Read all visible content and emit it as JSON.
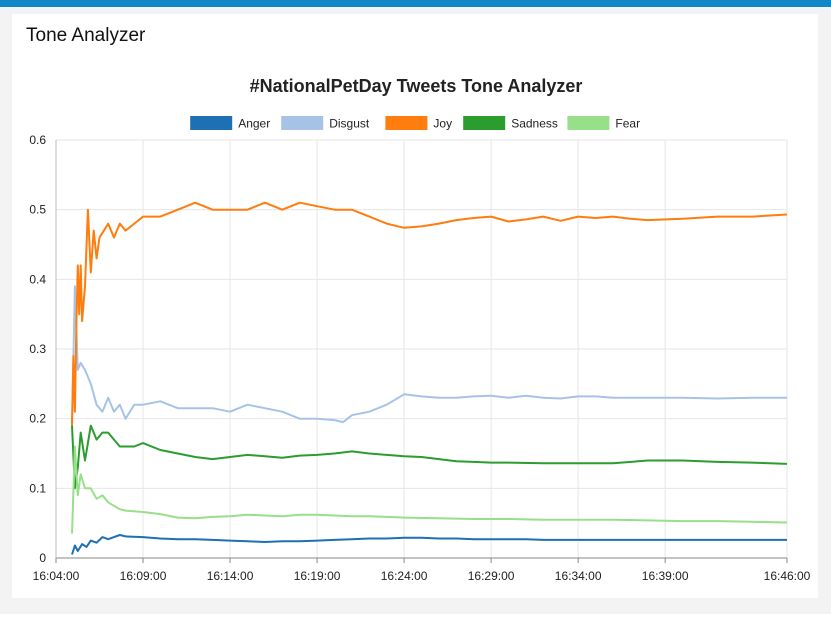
{
  "app": {
    "title": "Tone Analyzer",
    "accent_color": "#0f87c9"
  },
  "chart_data": {
    "type": "line",
    "title": "#NationalPetDay Tweets Tone Analyzer",
    "xlabel": "",
    "ylabel": "",
    "ylim": [
      0,
      0.6
    ],
    "yticks": [
      "0",
      "0.1",
      "0.2",
      "0.3",
      "0.4",
      "0.5",
      "0.6"
    ],
    "xlim": [
      "16:04:00",
      "16:46:00"
    ],
    "xticks": [
      "16:04:00",
      "16:09:00",
      "16:14:00",
      "16:19:00",
      "16:24:00",
      "16:29:00",
      "16:34:00",
      "16:39:00",
      "16:46:00"
    ],
    "grid": true,
    "legend_position": "top",
    "series": [
      {
        "name": "Anger",
        "color": "#1f6fb4",
        "x": [
          "16:04:55",
          "16:05:05",
          "16:05:15",
          "16:05:30",
          "16:05:45",
          "16:06:00",
          "16:06:20",
          "16:06:40",
          "16:07:00",
          "16:07:20",
          "16:07:40",
          "16:08:00",
          "16:09:00",
          "16:10:00",
          "16:11:00",
          "16:12:00",
          "16:13:00",
          "16:14:00",
          "16:15:00",
          "16:16:00",
          "16:17:00",
          "16:18:00",
          "16:19:00",
          "16:20:00",
          "16:21:00",
          "16:22:00",
          "16:23:00",
          "16:24:00",
          "16:25:00",
          "16:26:00",
          "16:27:00",
          "16:28:00",
          "16:29:00",
          "16:30:00",
          "16:31:00",
          "16:32:00",
          "16:33:00",
          "16:34:00",
          "16:35:00",
          "16:36:00",
          "16:38:00",
          "16:40:00",
          "16:42:00",
          "16:44:00",
          "16:46:00"
        ],
        "y": [
          0.005,
          0.018,
          0.01,
          0.02,
          0.016,
          0.025,
          0.022,
          0.03,
          0.027,
          0.03,
          0.033,
          0.031,
          0.03,
          0.028,
          0.027,
          0.027,
          0.026,
          0.025,
          0.024,
          0.023,
          0.024,
          0.024,
          0.025,
          0.026,
          0.027,
          0.028,
          0.028,
          0.029,
          0.029,
          0.028,
          0.028,
          0.027,
          0.027,
          0.027,
          0.027,
          0.026,
          0.026,
          0.026,
          0.026,
          0.026,
          0.026,
          0.026,
          0.026,
          0.026,
          0.026
        ]
      },
      {
        "name": "Disgust",
        "color": "#a6c3e7",
        "x": [
          "16:04:55",
          "16:05:05",
          "16:05:15",
          "16:05:25",
          "16:05:40",
          "16:06:00",
          "16:06:20",
          "16:06:40",
          "16:07:00",
          "16:07:20",
          "16:07:40",
          "16:08:00",
          "16:08:30",
          "16:09:00",
          "16:10:00",
          "16:11:00",
          "16:12:00",
          "16:13:00",
          "16:14:00",
          "16:15:00",
          "16:16:00",
          "16:17:00",
          "16:18:00",
          "16:19:00",
          "16:20:00",
          "16:20:30",
          "16:21:00",
          "16:22:00",
          "16:23:00",
          "16:24:00",
          "16:25:00",
          "16:26:00",
          "16:27:00",
          "16:28:00",
          "16:29:00",
          "16:30:00",
          "16:31:00",
          "16:32:00",
          "16:33:00",
          "16:34:00",
          "16:35:00",
          "16:36:00",
          "16:38:00",
          "16:40:00",
          "16:42:00",
          "16:44:00",
          "16:46:00"
        ],
        "y": [
          0.19,
          0.39,
          0.27,
          0.28,
          0.27,
          0.25,
          0.22,
          0.21,
          0.23,
          0.21,
          0.22,
          0.2,
          0.22,
          0.22,
          0.225,
          0.215,
          0.215,
          0.215,
          0.21,
          0.22,
          0.215,
          0.21,
          0.2,
          0.2,
          0.198,
          0.195,
          0.205,
          0.21,
          0.22,
          0.235,
          0.232,
          0.23,
          0.23,
          0.232,
          0.233,
          0.23,
          0.233,
          0.23,
          0.229,
          0.232,
          0.232,
          0.23,
          0.23,
          0.23,
          0.229,
          0.23,
          0.23
        ]
      },
      {
        "name": "Joy",
        "color": "#ff7c0e",
        "x": [
          "16:04:55",
          "16:05:00",
          "16:05:05",
          "16:05:10",
          "16:05:15",
          "16:05:20",
          "16:05:25",
          "16:05:30",
          "16:05:40",
          "16:05:50",
          "16:06:00",
          "16:06:10",
          "16:06:20",
          "16:06:30",
          "16:06:45",
          "16:07:00",
          "16:07:20",
          "16:07:40",
          "16:08:00",
          "16:08:30",
          "16:09:00",
          "16:10:00",
          "16:11:00",
          "16:12:00",
          "16:13:00",
          "16:14:00",
          "16:15:00",
          "16:16:00",
          "16:17:00",
          "16:18:00",
          "16:19:00",
          "16:20:00",
          "16:21:00",
          "16:22:00",
          "16:23:00",
          "16:24:00",
          "16:25:00",
          "16:26:00",
          "16:27:00",
          "16:28:00",
          "16:29:00",
          "16:30:00",
          "16:31:00",
          "16:32:00",
          "16:33:00",
          "16:34:00",
          "16:35:00",
          "16:36:00",
          "16:37:00",
          "16:38:00",
          "16:40:00",
          "16:42:00",
          "16:44:00",
          "16:46:00"
        ],
        "y": [
          0.19,
          0.29,
          0.21,
          0.33,
          0.42,
          0.35,
          0.42,
          0.34,
          0.39,
          0.5,
          0.41,
          0.47,
          0.43,
          0.46,
          0.47,
          0.48,
          0.46,
          0.48,
          0.47,
          0.48,
          0.49,
          0.49,
          0.5,
          0.51,
          0.5,
          0.5,
          0.5,
          0.51,
          0.5,
          0.51,
          0.505,
          0.5,
          0.5,
          0.49,
          0.48,
          0.474,
          0.476,
          0.48,
          0.485,
          0.488,
          0.49,
          0.483,
          0.486,
          0.49,
          0.484,
          0.49,
          0.488,
          0.49,
          0.487,
          0.485,
          0.487,
          0.49,
          0.49,
          0.493
        ]
      },
      {
        "name": "Sadness",
        "color": "#2a9d2e",
        "x": [
          "16:04:55",
          "16:05:05",
          "16:05:15",
          "16:05:25",
          "16:05:40",
          "16:06:00",
          "16:06:20",
          "16:06:40",
          "16:07:00",
          "16:07:20",
          "16:07:40",
          "16:08:00",
          "16:08:30",
          "16:09:00",
          "16:10:00",
          "16:11:00",
          "16:12:00",
          "16:13:00",
          "16:14:00",
          "16:15:00",
          "16:16:00",
          "16:17:00",
          "16:18:00",
          "16:19:00",
          "16:20:00",
          "16:21:00",
          "16:22:00",
          "16:23:00",
          "16:24:00",
          "16:25:00",
          "16:26:00",
          "16:27:00",
          "16:28:00",
          "16:29:00",
          "16:30:00",
          "16:32:00",
          "16:34:00",
          "16:36:00",
          "16:38:00",
          "16:40:00",
          "16:42:00",
          "16:44:00",
          "16:46:00"
        ],
        "y": [
          0.19,
          0.1,
          0.13,
          0.18,
          0.14,
          0.19,
          0.17,
          0.18,
          0.18,
          0.17,
          0.16,
          0.16,
          0.16,
          0.165,
          0.155,
          0.15,
          0.145,
          0.142,
          0.145,
          0.148,
          0.146,
          0.144,
          0.147,
          0.148,
          0.15,
          0.153,
          0.15,
          0.148,
          0.146,
          0.145,
          0.142,
          0.139,
          0.138,
          0.137,
          0.137,
          0.136,
          0.136,
          0.136,
          0.14,
          0.14,
          0.138,
          0.137,
          0.135
        ]
      },
      {
        "name": "Fear",
        "color": "#98df8a",
        "x": [
          "16:04:55",
          "16:05:05",
          "16:05:15",
          "16:05:25",
          "16:05:40",
          "16:06:00",
          "16:06:20",
          "16:06:40",
          "16:07:00",
          "16:07:20",
          "16:07:40",
          "16:08:00",
          "16:09:00",
          "16:10:00",
          "16:11:00",
          "16:12:00",
          "16:13:00",
          "16:14:00",
          "16:15:00",
          "16:16:00",
          "16:17:00",
          "16:18:00",
          "16:19:00",
          "16:20:00",
          "16:21:00",
          "16:22:00",
          "16:24:00",
          "16:26:00",
          "16:28:00",
          "16:30:00",
          "16:32:00",
          "16:34:00",
          "16:36:00",
          "16:38:00",
          "16:40:00",
          "16:42:00",
          "16:44:00",
          "16:46:00"
        ],
        "y": [
          0.035,
          0.16,
          0.09,
          0.12,
          0.1,
          0.1,
          0.085,
          0.09,
          0.08,
          0.075,
          0.07,
          0.068,
          0.066,
          0.063,
          0.058,
          0.057,
          0.059,
          0.06,
          0.062,
          0.061,
          0.06,
          0.062,
          0.062,
          0.061,
          0.06,
          0.06,
          0.058,
          0.057,
          0.056,
          0.056,
          0.055,
          0.055,
          0.055,
          0.054,
          0.053,
          0.053,
          0.052,
          0.051
        ]
      }
    ]
  }
}
